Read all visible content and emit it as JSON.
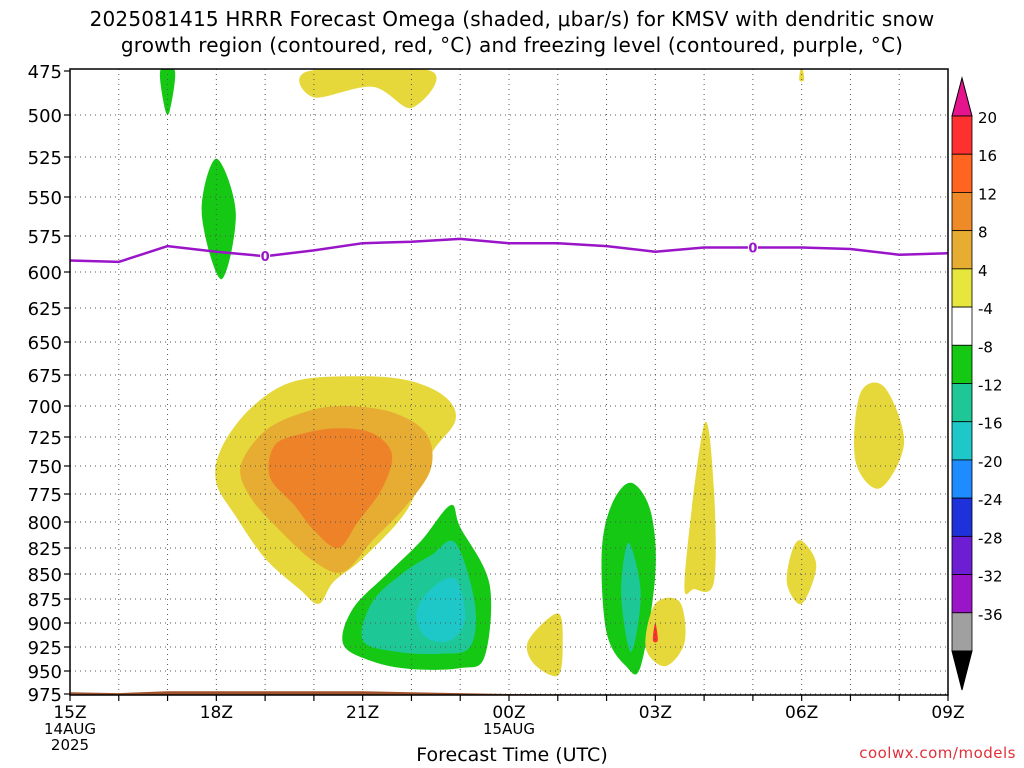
{
  "chart_data": {
    "type": "contour",
    "title_line1": "2025081415 HRRR Forecast Omega (shaded, μbar/s) for KMSV with dendritic snow",
    "title_line2": "growth region (contoured, red, °C) and freezing level (contoured, purple, °C)",
    "xlabel": "Forecast Time (UTC)",
    "credit": "coolwx.com/models",
    "x_range_hours": [
      0,
      18
    ],
    "x_ticks": [
      {
        "h": 0,
        "lines": [
          "15Z",
          "14AUG",
          "2025"
        ]
      },
      {
        "h": 3,
        "lines": [
          "18Z"
        ]
      },
      {
        "h": 6,
        "lines": [
          "21Z"
        ]
      },
      {
        "h": 9,
        "lines": [
          "00Z",
          "15AUG"
        ]
      },
      {
        "h": 12,
        "lines": [
          "03Z"
        ]
      },
      {
        "h": 15,
        "lines": [
          "06Z"
        ]
      },
      {
        "h": 18,
        "lines": [
          "09Z"
        ]
      }
    ],
    "y_ticks_mb": [
      475,
      500,
      525,
      550,
      575,
      600,
      625,
      650,
      675,
      700,
      725,
      750,
      775,
      800,
      825,
      850,
      875,
      900,
      925,
      950,
      975
    ],
    "y_range_mb": [
      475,
      985
    ],
    "colorbar": {
      "labels": [
        "20",
        "16",
        "12",
        "8",
        "4",
        "-4",
        "-8",
        "-12",
        "-16",
        "-20",
        "-24",
        "-28",
        "-32",
        "-36"
      ],
      "bins": [
        {
          "color": "#ff3030"
        },
        {
          "color": "#ff6420"
        },
        {
          "color": "#ee8a28"
        },
        {
          "color": "#e6ad32"
        },
        {
          "color": "#e6e63c"
        },
        {
          "color": "#ffffff"
        },
        {
          "color": "#14c814"
        },
        {
          "color": "#1ec896"
        },
        {
          "color": "#1ec8c8"
        },
        {
          "color": "#1e8cff"
        },
        {
          "color": "#1e32dc"
        },
        {
          "color": "#6e1ed2"
        },
        {
          "color": "#9a14c8"
        },
        {
          "color": "#a0a0a0"
        }
      ],
      "top_arrow_color": "#e6148c",
      "bottom_arrow_color": "#000000"
    },
    "colors": {
      "yellow": "#e6d83a",
      "gold": "#e6ad32",
      "orange": "#ee8228",
      "green": "#14c814",
      "teal": "#1ec896",
      "cyan": "#1ec8c8",
      "red": "#ff3030",
      "freezing": "#9a14c8",
      "ground": "#a0522d"
    },
    "freezing_level": {
      "label": "0",
      "label_points": [
        {
          "h": 4,
          "p": 589
        },
        {
          "h": 14,
          "p": 583
        }
      ],
      "points": [
        {
          "h": 0,
          "p": 592
        },
        {
          "h": 1,
          "p": 593
        },
        {
          "h": 2,
          "p": 582
        },
        {
          "h": 3,
          "p": 586
        },
        {
          "h": 4,
          "p": 589
        },
        {
          "h": 5,
          "p": 585
        },
        {
          "h": 6,
          "p": 580
        },
        {
          "h": 7,
          "p": 579
        },
        {
          "h": 8,
          "p": 577
        },
        {
          "h": 9,
          "p": 580
        },
        {
          "h": 10,
          "p": 580
        },
        {
          "h": 11,
          "p": 582
        },
        {
          "h": 12,
          "p": 586
        },
        {
          "h": 13,
          "p": 583
        },
        {
          "h": 14,
          "p": 583
        },
        {
          "h": 15,
          "p": 583
        },
        {
          "h": 16,
          "p": 584
        },
        {
          "h": 17,
          "p": 588
        },
        {
          "h": 18,
          "p": 587
        }
      ]
    },
    "ground": {
      "points": [
        {
          "h": 0,
          "p": 973
        },
        {
          "h": 1,
          "p": 974
        },
        {
          "h": 2,
          "p": 972
        },
        {
          "h": 6,
          "p": 972
        },
        {
          "h": 7,
          "p": 973
        },
        {
          "h": 9,
          "p": 975
        },
        {
          "h": 12,
          "p": 976
        },
        {
          "h": 15,
          "p": 976
        },
        {
          "h": 18,
          "p": 976
        }
      ]
    },
    "omega_regions": [
      {
        "level": "yellow",
        "points": [
          [
            3.7,
            702
          ],
          [
            4.6,
            680
          ],
          [
            6.0,
            676
          ],
          [
            7.0,
            680
          ],
          [
            7.7,
            693
          ],
          [
            7.9,
            712
          ],
          [
            7.4,
            740
          ],
          [
            6.9,
            790
          ],
          [
            6.0,
            835
          ],
          [
            5.4,
            858
          ],
          [
            5.1,
            880
          ],
          [
            4.7,
            865
          ],
          [
            4.0,
            835
          ],
          [
            3.4,
            795
          ],
          [
            3.0,
            765
          ],
          [
            3.1,
            735
          ]
        ]
      },
      {
        "level": "gold",
        "points": [
          [
            4.0,
            720
          ],
          [
            4.8,
            705
          ],
          [
            5.6,
            700
          ],
          [
            6.6,
            705
          ],
          [
            7.3,
            722
          ],
          [
            7.4,
            752
          ],
          [
            6.9,
            785
          ],
          [
            6.2,
            818
          ],
          [
            5.6,
            848
          ],
          [
            5.0,
            838
          ],
          [
            4.3,
            808
          ],
          [
            3.7,
            778
          ],
          [
            3.5,
            750
          ]
        ]
      },
      {
        "level": "orange",
        "points": [
          [
            4.2,
            732
          ],
          [
            4.8,
            722
          ],
          [
            5.5,
            718
          ],
          [
            6.2,
            722
          ],
          [
            6.6,
            740
          ],
          [
            6.4,
            770
          ],
          [
            5.9,
            800
          ],
          [
            5.5,
            825
          ],
          [
            5.0,
            808
          ],
          [
            4.6,
            785
          ],
          [
            4.1,
            760
          ]
        ]
      },
      {
        "level": "green",
        "points": [
          [
            7.8,
            785
          ],
          [
            8.0,
            805
          ],
          [
            8.6,
            860
          ],
          [
            8.5,
            935
          ],
          [
            8.0,
            947
          ],
          [
            7.0,
            948
          ],
          [
            6.2,
            940
          ],
          [
            5.6,
            922
          ],
          [
            5.8,
            885
          ],
          [
            6.5,
            850
          ],
          [
            7.2,
            818
          ]
        ]
      },
      {
        "level": "teal",
        "points": [
          [
            7.9,
            820
          ],
          [
            8.3,
            880
          ],
          [
            8.2,
            925
          ],
          [
            7.6,
            932
          ],
          [
            6.7,
            930
          ],
          [
            6.0,
            918
          ],
          [
            6.2,
            878
          ],
          [
            6.8,
            850
          ],
          [
            7.4,
            832
          ]
        ]
      },
      {
        "level": "cyan",
        "points": [
          [
            7.9,
            855
          ],
          [
            8.1,
            895
          ],
          [
            7.8,
            918
          ],
          [
            7.3,
            915
          ],
          [
            7.1,
            890
          ],
          [
            7.4,
            865
          ]
        ]
      },
      {
        "level": "green",
        "points": [
          [
            1.85,
            475
          ],
          [
            2.15,
            475
          ],
          [
            2.05,
            497
          ],
          [
            1.95,
            497
          ]
        ]
      },
      {
        "level": "green",
        "points": [
          [
            3.0,
            526
          ],
          [
            3.4,
            560
          ],
          [
            3.1,
            605
          ],
          [
            2.7,
            560
          ]
        ]
      },
      {
        "level": "yellow",
        "points": [
          [
            4.9,
            475
          ],
          [
            7.4,
            475
          ],
          [
            7.0,
            496
          ],
          [
            6.2,
            484
          ],
          [
            5.0,
            490
          ]
        ]
      },
      {
        "level": "yellow",
        "points": [
          [
            15.0,
            472
          ],
          [
            15.05,
            480
          ],
          [
            14.95,
            480
          ]
        ]
      },
      {
        "level": "green",
        "points": [
          [
            11.5,
            765
          ],
          [
            11.9,
            790
          ],
          [
            12.0,
            850
          ],
          [
            11.7,
            945
          ],
          [
            11.4,
            945
          ],
          [
            11.0,
            910
          ],
          [
            10.9,
            830
          ],
          [
            11.1,
            785
          ]
        ]
      },
      {
        "level": "teal",
        "points": [
          [
            11.45,
            820
          ],
          [
            11.7,
            870
          ],
          [
            11.5,
            930
          ],
          [
            11.3,
            870
          ]
        ]
      },
      {
        "level": "yellow",
        "points": [
          [
            12.0,
            880
          ],
          [
            12.5,
            878
          ],
          [
            12.6,
            920
          ],
          [
            12.2,
            945
          ],
          [
            11.8,
            925
          ]
        ]
      },
      {
        "level": "red",
        "points": [
          [
            12.0,
            900
          ],
          [
            12.05,
            918
          ],
          [
            11.95,
            918
          ]
        ]
      },
      {
        "level": "yellow",
        "points": [
          [
            12.6,
            855
          ],
          [
            13.0,
            715
          ],
          [
            13.2,
            770
          ],
          [
            13.2,
            858
          ],
          [
            12.8,
            865
          ]
        ]
      },
      {
        "level": "yellow",
        "points": [
          [
            9.4,
            918
          ],
          [
            10.0,
            890
          ],
          [
            10.1,
            922
          ],
          [
            10.0,
            955
          ],
          [
            9.5,
            942
          ]
        ]
      },
      {
        "level": "yellow",
        "points": [
          [
            16.2,
            690
          ],
          [
            16.7,
            685
          ],
          [
            17.1,
            730
          ],
          [
            16.6,
            770
          ],
          [
            16.1,
            745
          ]
        ]
      },
      {
        "level": "yellow",
        "points": [
          [
            14.8,
            828
          ],
          [
            15.0,
            818
          ],
          [
            15.3,
            842
          ],
          [
            15.0,
            880
          ],
          [
            14.7,
            860
          ]
        ]
      }
    ]
  }
}
